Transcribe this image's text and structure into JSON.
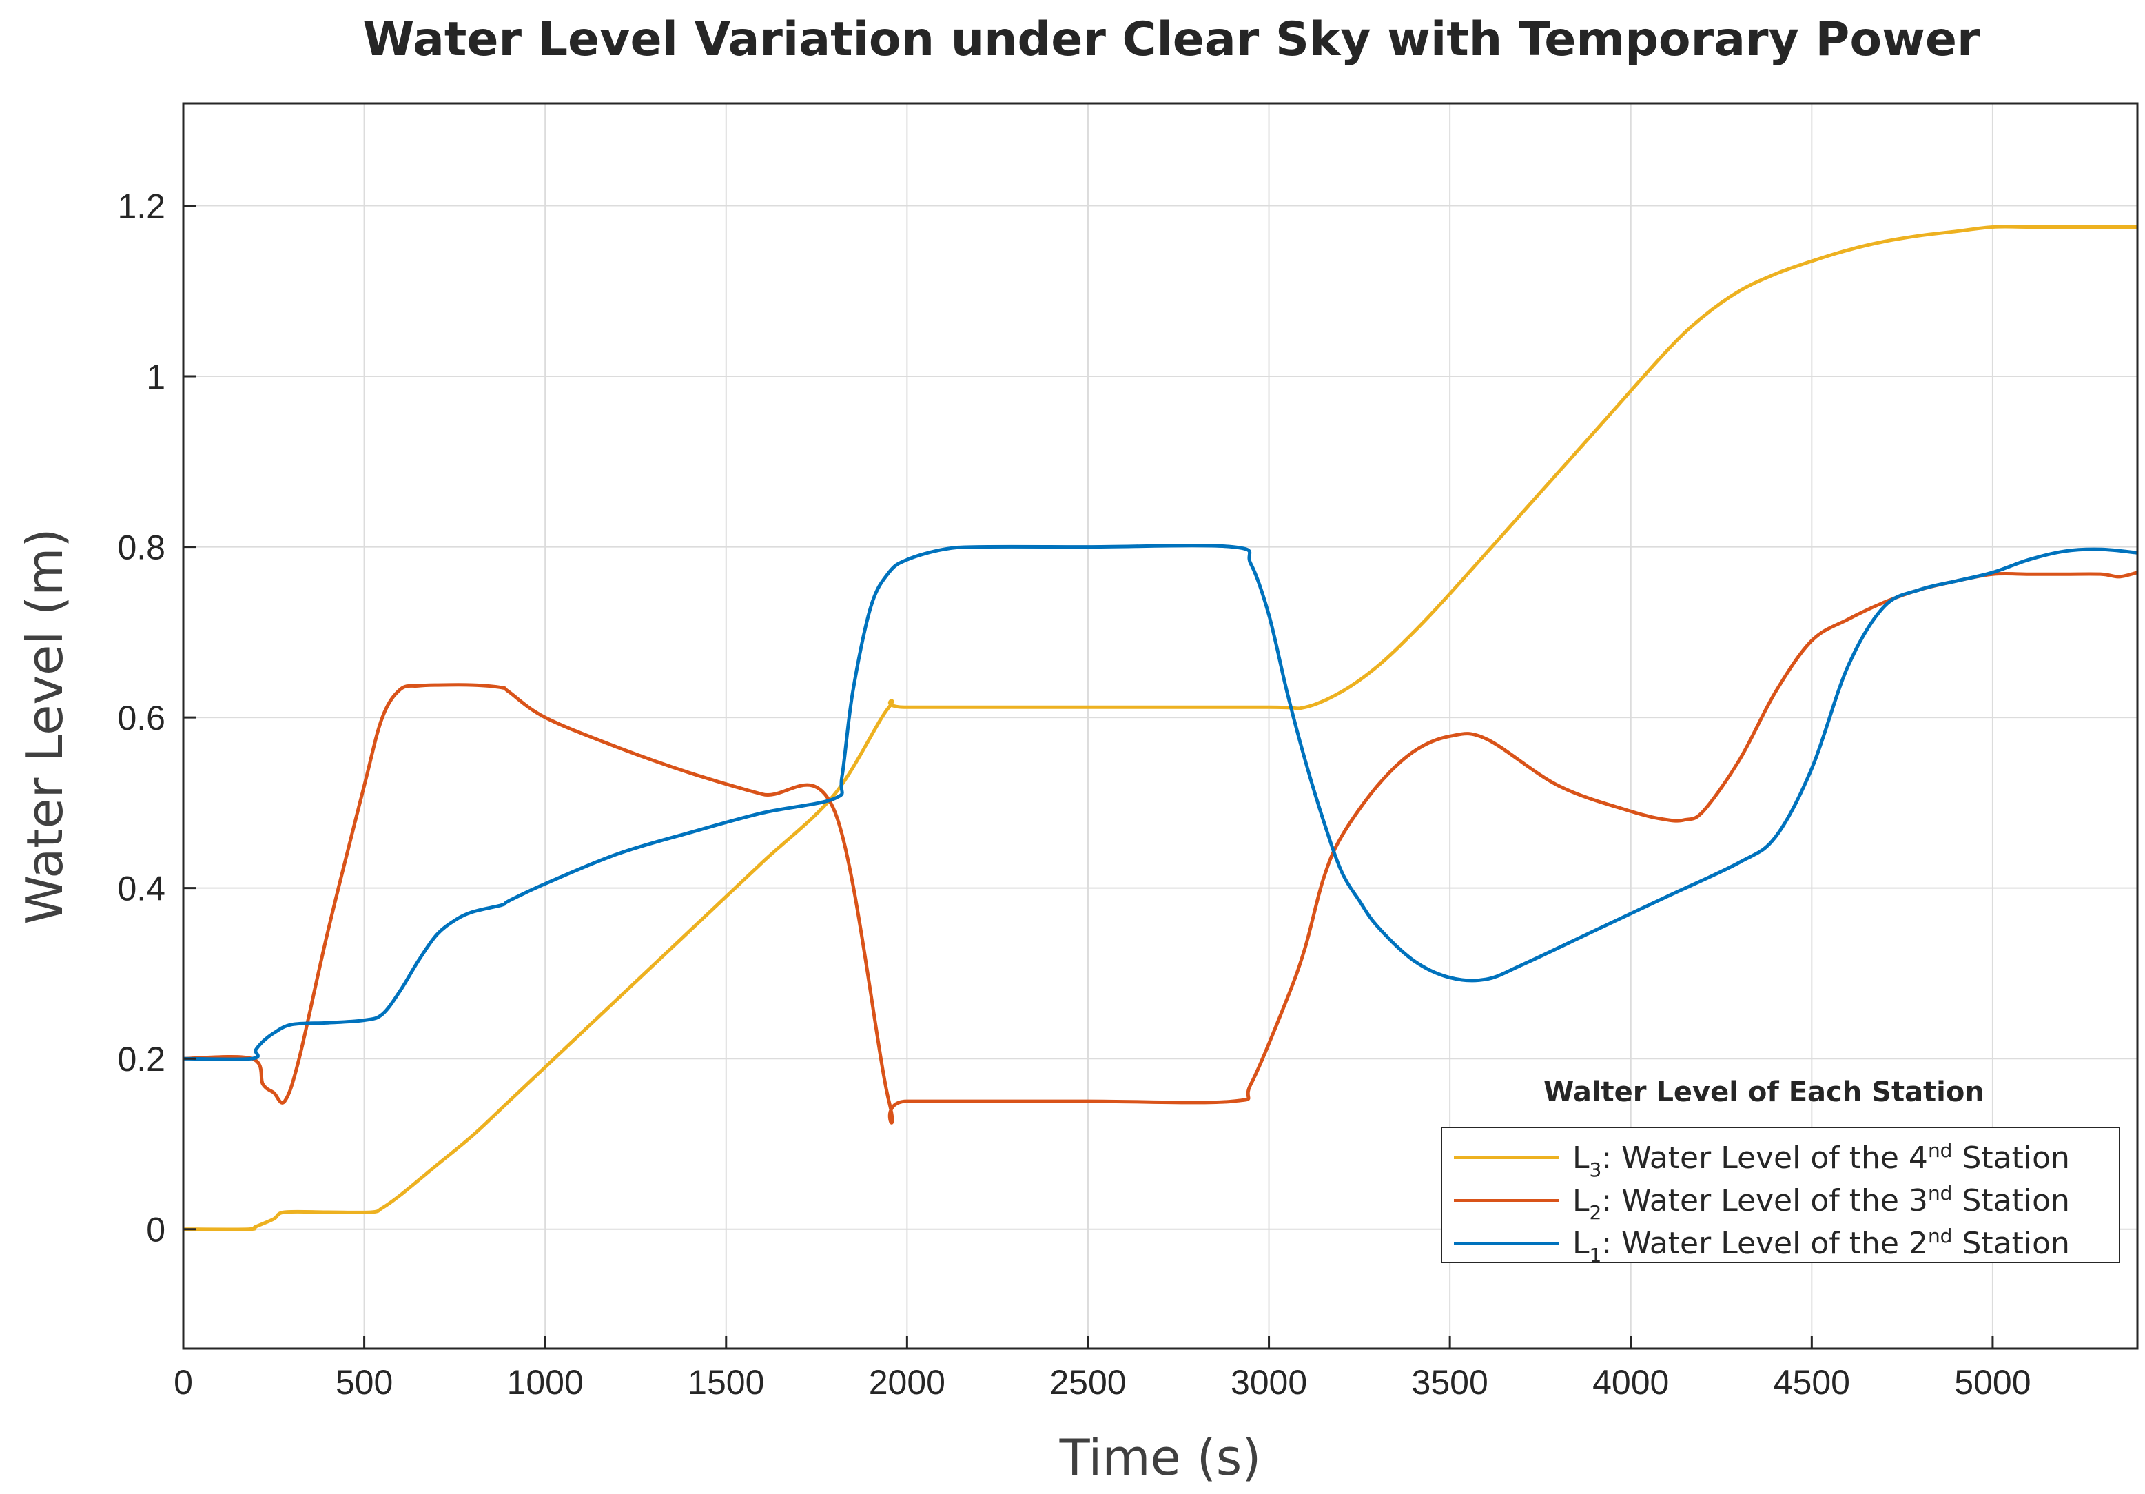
{
  "chart_data": {
    "type": "line",
    "title": "Water Level Variation under Clear Sky with Temporary Power",
    "xlabel": "Time (s)",
    "ylabel": "Water Level (m)",
    "xlim": [
      0,
      5400
    ],
    "ylim": [
      -0.14,
      1.32
    ],
    "xticks": [
      0,
      500,
      1000,
      1500,
      2000,
      2500,
      3000,
      3500,
      4000,
      4500,
      5000
    ],
    "yticks": [
      0,
      0.2,
      0.4,
      0.6,
      0.8,
      1,
      1.2
    ],
    "xtick_labels": [
      "0",
      "500",
      "1000",
      "1500",
      "2000",
      "2500",
      "3000",
      "3500",
      "4000",
      "4500",
      "5000"
    ],
    "ytick_labels": [
      "0",
      "0.2",
      "0.4",
      "0.6",
      "0.8",
      "1",
      "1.2"
    ],
    "grid": true,
    "legend": {
      "title": "Walter Level of Each Station",
      "position": "bottom-right",
      "entries": [
        {
          "sym": "L",
          "sub": "3",
          "text": ": Water Level of the 4",
          "sup": "nd",
          "tail": " Station",
          "series": 0
        },
        {
          "sym": "L",
          "sub": "2",
          "text": ": Water Level of the 3",
          "sup": "nd",
          "tail": " Station",
          "series": 1
        },
        {
          "sym": "L",
          "sub": "1",
          "text": ": Water Level of the 2",
          "sup": "nd",
          "tail": " Station",
          "series": 2
        }
      ]
    },
    "series": [
      {
        "name": "L3: Water Level of the 4nd Station",
        "color": "#EDB120",
        "x": [
          0,
          180,
          200,
          250,
          280,
          400,
          520,
          550,
          600,
          700,
          800,
          900,
          1000,
          1200,
          1400,
          1600,
          1800,
          1950,
          2000,
          2500,
          3000,
          3100,
          3200,
          3300,
          3400,
          3500,
          3700,
          3900,
          4100,
          4200,
          4300,
          4400,
          4500,
          4600,
          4700,
          4800,
          4900,
          5000,
          5100,
          5200,
          5300,
          5400
        ],
        "y": [
          0,
          0,
          0.003,
          0.012,
          0.02,
          0.02,
          0.02,
          0.025,
          0.04,
          0.075,
          0.11,
          0.15,
          0.19,
          0.27,
          0.35,
          0.43,
          0.51,
          0.612,
          0.612,
          0.612,
          0.612,
          0.612,
          0.63,
          0.66,
          0.7,
          0.745,
          0.84,
          0.935,
          1.03,
          1.07,
          1.1,
          1.12,
          1.135,
          1.148,
          1.158,
          1.165,
          1.17,
          1.175,
          1.175,
          1.175,
          1.175,
          1.175
        ]
      },
      {
        "name": "L2: Water Level of the 3nd Station",
        "color": "#D95319",
        "x": [
          0,
          190,
          220,
          250,
          280,
          320,
          400,
          500,
          550,
          600,
          650,
          700,
          800,
          880,
          900,
          1000,
          1200,
          1400,
          1600,
          1800,
          1950,
          2000,
          2500,
          2900,
          2950,
          3050,
          3100,
          3150,
          3200,
          3300,
          3400,
          3500,
          3600,
          3800,
          4000,
          4100,
          4150,
          4200,
          4300,
          4400,
          4500,
          4600,
          4700,
          4800,
          4900,
          5000,
          5100,
          5200,
          5300,
          5350,
          5400
        ],
        "y": [
          0.2,
          0.2,
          0.17,
          0.16,
          0.15,
          0.2,
          0.35,
          0.52,
          0.6,
          0.633,
          0.637,
          0.638,
          0.638,
          0.635,
          0.63,
          0.6,
          0.565,
          0.535,
          0.51,
          0.49,
          0.15,
          0.15,
          0.15,
          0.15,
          0.17,
          0.27,
          0.33,
          0.41,
          0.46,
          0.52,
          0.56,
          0.578,
          0.575,
          0.52,
          0.49,
          0.48,
          0.48,
          0.49,
          0.55,
          0.63,
          0.69,
          0.715,
          0.735,
          0.75,
          0.76,
          0.768,
          0.768,
          0.768,
          0.768,
          0.765,
          0.77
        ]
      },
      {
        "name": "L1: Water Level of the 2nd Station",
        "color": "#0072BD",
        "x": [
          0,
          190,
          200,
          220,
          250,
          300,
          400,
          500,
          550,
          600,
          650,
          700,
          750,
          800,
          880,
          900,
          1000,
          1200,
          1400,
          1600,
          1800,
          1820,
          1850,
          1900,
          1950,
          2000,
          2100,
          2200,
          2500,
          2900,
          2950,
          3000,
          3050,
          3100,
          3150,
          3200,
          3250,
          3300,
          3400,
          3500,
          3600,
          3700,
          3900,
          4100,
          4300,
          4400,
          4500,
          4600,
          4700,
          4800,
          4900,
          5000,
          5100,
          5200,
          5300,
          5400
        ],
        "y": [
          0.2,
          0.2,
          0.21,
          0.22,
          0.23,
          0.24,
          0.242,
          0.245,
          0.252,
          0.28,
          0.315,
          0.345,
          0.362,
          0.372,
          0.38,
          0.385,
          0.405,
          0.44,
          0.465,
          0.488,
          0.505,
          0.53,
          0.63,
          0.73,
          0.77,
          0.785,
          0.797,
          0.8,
          0.8,
          0.8,
          0.78,
          0.72,
          0.63,
          0.55,
          0.48,
          0.42,
          0.385,
          0.355,
          0.315,
          0.295,
          0.293,
          0.31,
          0.35,
          0.39,
          0.43,
          0.46,
          0.54,
          0.66,
          0.73,
          0.75,
          0.76,
          0.77,
          0.785,
          0.795,
          0.797,
          0.793
        ]
      }
    ]
  }
}
